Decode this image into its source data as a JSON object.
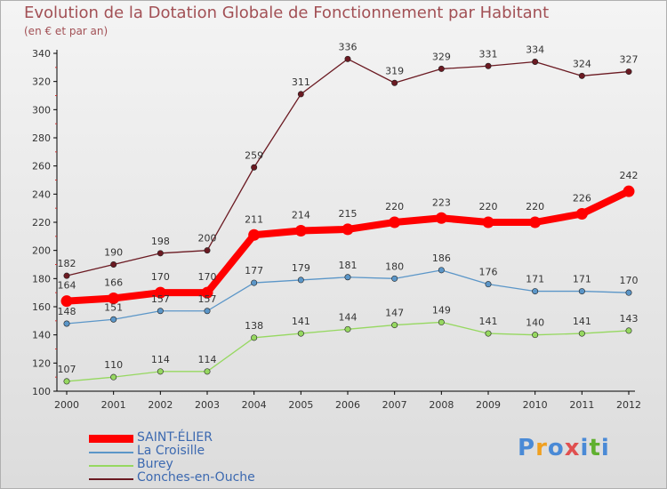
{
  "header": {
    "title": "Evolution de la Dotation Globale de Fonctionnement par Habitant",
    "subtitle": "(en € et par an)"
  },
  "logo": {
    "text": "Proxiti",
    "letters": [
      "P",
      "r",
      "o",
      "x",
      "i",
      "t",
      "i"
    ]
  },
  "colors": {
    "title": "#a25055",
    "legend_text": "#3c69b0",
    "logo_letters": [
      "#4a8ad6",
      "#f0a020",
      "#4a8ad6",
      "#e05050",
      "#4a8ad6",
      "#60b030",
      "#4a8ad6"
    ]
  },
  "chart_data": {
    "type": "line",
    "title": "Evolution de la Dotation Globale de Fonctionnement par Habitant",
    "ylabel": "(en € et par an)",
    "xlabel": "",
    "x": [
      "2000",
      "2001",
      "2002",
      "2003",
      "2004",
      "2005",
      "2006",
      "2007",
      "2008",
      "2009",
      "2010",
      "2011",
      "2012"
    ],
    "ylim": [
      100,
      340
    ],
    "yticks": [
      100,
      120,
      140,
      160,
      180,
      200,
      220,
      240,
      260,
      280,
      300,
      320,
      340
    ],
    "grid": false,
    "legend_position": "bottom-left",
    "series": [
      {
        "name": "SAINT-ÉLIER",
        "color": "#ff0000",
        "emphasis": true,
        "values": [
          164,
          166,
          170,
          170,
          211,
          214,
          215,
          220,
          223,
          220,
          220,
          226,
          242
        ]
      },
      {
        "name": "La Croisille",
        "color": "#5b96c8",
        "emphasis": false,
        "values": [
          148,
          151,
          157,
          157,
          177,
          179,
          181,
          180,
          186,
          176,
          171,
          171,
          170
        ]
      },
      {
        "name": "Burey",
        "color": "#96d860",
        "emphasis": false,
        "values": [
          107,
          110,
          114,
          114,
          138,
          141,
          144,
          147,
          149,
          141,
          140,
          141,
          143
        ]
      },
      {
        "name": "Conches-en-Ouche",
        "color": "#6b1a22",
        "emphasis": false,
        "values": [
          182,
          190,
          198,
          200,
          259,
          311,
          336,
          319,
          329,
          331,
          334,
          324,
          327
        ]
      }
    ]
  }
}
